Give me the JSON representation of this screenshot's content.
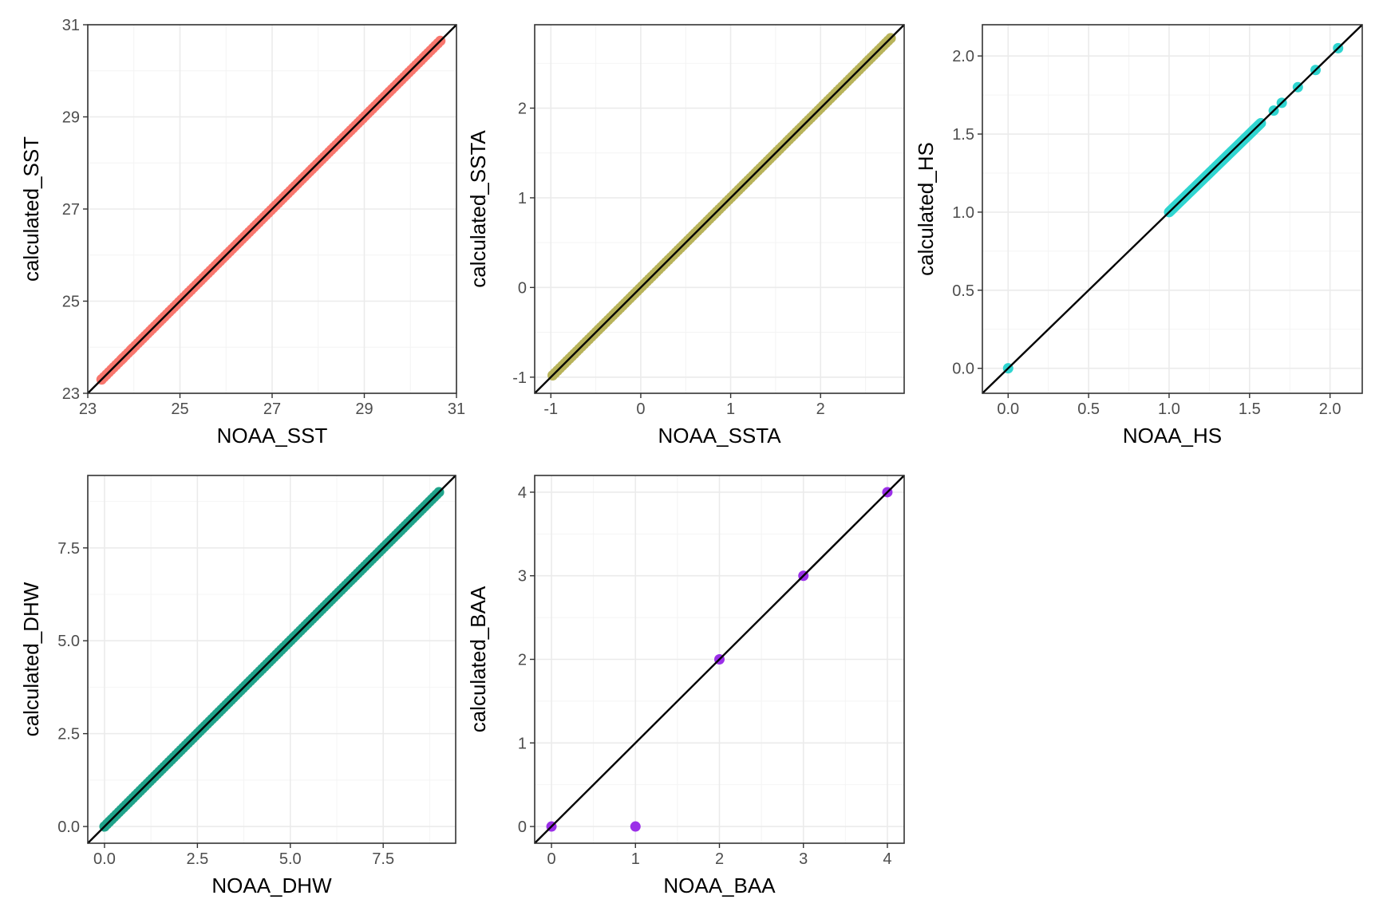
{
  "chart_data": [
    {
      "type": "scatter",
      "id": "sst",
      "xlabel": "NOAA_SST",
      "ylabel": "calculated_SST",
      "xlim": [
        23,
        31
      ],
      "ylim": [
        23,
        31
      ],
      "xticks": [
        23,
        25,
        27,
        29,
        31
      ],
      "yticks": [
        23,
        25,
        27,
        29,
        31
      ],
      "xtick_labels": [
        "23",
        "25",
        "27",
        "29",
        "31"
      ],
      "ytick_labels": [
        "23",
        "25",
        "27",
        "29",
        "31"
      ],
      "color": "#F8766D",
      "reference_line": "y = x",
      "points": {
        "dense_range": [
          23.3,
          30.65
        ],
        "isolated": [
          [
            23.3,
            23.3
          ],
          [
            23.75,
            23.75
          ],
          [
            23.95,
            23.95
          ]
        ]
      }
    },
    {
      "type": "scatter",
      "id": "ssta",
      "xlabel": "NOAA_SSTA",
      "ylabel": "calculated_SSTA",
      "xlim": [
        -1.18,
        2.93
      ],
      "ylim": [
        -1.18,
        2.93
      ],
      "xticks": [
        -1,
        0,
        1,
        2
      ],
      "yticks": [
        -1,
        0,
        1,
        2
      ],
      "xtick_labels": [
        "-1",
        "0",
        "1",
        "2"
      ],
      "ytick_labels": [
        "-1",
        "0",
        "1",
        "2"
      ],
      "color": "#B8B35A",
      "reference_line": "y = x",
      "points": {
        "dense_range": [
          -0.98,
          2.78
        ],
        "isolated": []
      }
    },
    {
      "type": "scatter",
      "id": "hs",
      "xlabel": "NOAA_HS",
      "ylabel": "calculated_HS",
      "xlim": [
        -0.16,
        2.2
      ],
      "ylim": [
        -0.16,
        2.2
      ],
      "xticks": [
        0.0,
        0.5,
        1.0,
        1.5,
        2.0
      ],
      "yticks": [
        0.0,
        0.5,
        1.0,
        1.5,
        2.0
      ],
      "xtick_labels": [
        "0.0",
        "0.5",
        "1.0",
        "1.5",
        "2.0"
      ],
      "ytick_labels": [
        "0.0",
        "0.5",
        "1.0",
        "1.5",
        "2.0"
      ],
      "color": "#30D5D0",
      "reference_line": "y = x",
      "points": {
        "dense_range": [
          1.0,
          1.57
        ],
        "isolated": [
          [
            0.0,
            0.0
          ],
          [
            1.65,
            1.65
          ],
          [
            1.7,
            1.7
          ],
          [
            1.8,
            1.8
          ],
          [
            1.91,
            1.91
          ],
          [
            2.05,
            2.05
          ]
        ]
      }
    },
    {
      "type": "scatter",
      "id": "dhw",
      "xlabel": "NOAA_DHW",
      "ylabel": "calculated_DHW",
      "xlim": [
        -0.45,
        9.45
      ],
      "ylim": [
        -0.45,
        9.45
      ],
      "xticks": [
        0.0,
        2.5,
        5.0,
        7.5
      ],
      "yticks": [
        0.0,
        2.5,
        5.0,
        7.5
      ],
      "xtick_labels": [
        "0.0",
        "2.5",
        "5.0",
        "7.5"
      ],
      "ytick_labels": [
        "0.0",
        "2.5",
        "5.0",
        "7.5"
      ],
      "color": "#1FA38A",
      "reference_line": "y = x",
      "points": {
        "dense_range": [
          0.0,
          9.0
        ],
        "isolated": []
      }
    },
    {
      "type": "scatter",
      "id": "baa",
      "xlabel": "NOAA_BAA",
      "ylabel": "calculated_BAA",
      "xlim": [
        -0.2,
        4.2
      ],
      "ylim": [
        -0.2,
        4.2
      ],
      "xticks": [
        0,
        1,
        2,
        3,
        4
      ],
      "yticks": [
        0,
        1,
        2,
        3,
        4
      ],
      "xtick_labels": [
        "0",
        "1",
        "2",
        "3",
        "4"
      ],
      "ytick_labels": [
        "0",
        "1",
        "2",
        "3",
        "4"
      ],
      "color": "#9B30E8",
      "reference_line": "y = x",
      "points": {
        "dense_range": null,
        "isolated": [
          [
            0,
            0
          ],
          [
            1,
            0
          ],
          [
            2,
            2
          ],
          [
            3,
            3
          ],
          [
            4,
            4
          ]
        ]
      }
    }
  ]
}
